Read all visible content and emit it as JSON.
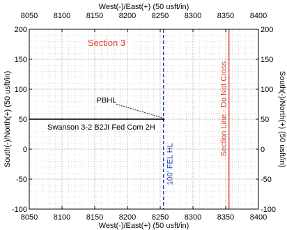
{
  "chart_data": {
    "type": "line",
    "title": "",
    "xlabel": "West(-)/East(+) (50 usft/in)",
    "ylabel": "South(-)/North(+) (50 usft/in)",
    "x2label": "West(-)/East(+) (50 usft/in)",
    "y2label": "South(-)/North(+) (50 usft/in)",
    "xlim": [
      8050,
      8400
    ],
    "ylim": [
      -100,
      200
    ],
    "x_ticks": [
      8050,
      8100,
      8150,
      8200,
      8250,
      8300,
      8350,
      8400
    ],
    "y_ticks": [
      -100,
      -50,
      0,
      50,
      100,
      150,
      200
    ],
    "grid": true,
    "colors": {
      "grid": "#b8b8b8",
      "well": "#1a1a1a",
      "fel": "#1f3fbf",
      "section": "#e03a2a",
      "frame": "#000000"
    },
    "series": [
      {
        "name": "Swanson 3-2 B2JI Fed Com 2H",
        "x": [
          8050,
          8255
        ],
        "y": [
          50,
          50
        ]
      }
    ],
    "vlines": [
      {
        "label": "100' FEL HL",
        "x": 8255,
        "style": "dashed"
      },
      {
        "label": "Section Line - Do Not Cross",
        "x": 8355,
        "style": "solid"
      }
    ],
    "annotations": {
      "section_label": "Section 3",
      "pbhl_label": "PBHL",
      "pbhl_point": [
        8255,
        50
      ],
      "pbhl_text_anchor": [
        8168,
        82
      ]
    }
  }
}
